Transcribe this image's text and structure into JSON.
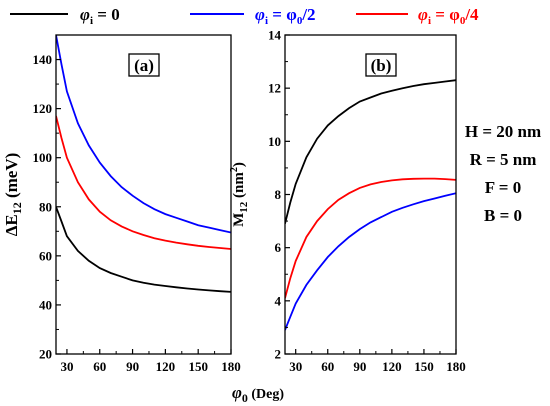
{
  "legend": [
    {
      "symbol": "φ",
      "sub": "i",
      "rest": " = 0",
      "color": "#000000"
    },
    {
      "symbol": "φ",
      "sub": "i",
      "rest": " = φ",
      "sub2": "0",
      "tail": "/2",
      "color": "#0000ff"
    },
    {
      "symbol": "φ",
      "sub": "i",
      "rest": " = φ",
      "sub2": "0",
      "tail": "/4",
      "color": "#ff0000"
    }
  ],
  "params": [
    "H = 20 nm",
    "R = 5 nm",
    "F = 0",
    "B = 0"
  ],
  "chart_data": [
    {
      "type": "line",
      "panel_label": "(a)",
      "ylabel": {
        "main": "ΔE",
        "sub": "12",
        "unit": " (meV)"
      },
      "xlim": [
        20,
        180
      ],
      "ylim": [
        20,
        150
      ],
      "xticks": [
        30,
        60,
        90,
        120,
        150,
        180
      ],
      "yticks": [
        20,
        40,
        60,
        80,
        100,
        120,
        140
      ],
      "x": [
        20,
        25,
        30,
        40,
        50,
        60,
        70,
        80,
        90,
        100,
        110,
        120,
        130,
        140,
        150,
        160,
        170,
        180
      ],
      "series": [
        {
          "color": "#000000",
          "values": [
            80,
            74,
            68,
            62,
            58,
            55,
            53,
            51.5,
            50,
            49,
            48.3,
            47.7,
            47.2,
            46.7,
            46.3,
            45.9,
            45.6,
            45.3
          ]
        },
        {
          "color": "#0000ff",
          "values": [
            150,
            138,
            127,
            114,
            105,
            98,
            92.5,
            88,
            84.5,
            81.5,
            79,
            77,
            75.5,
            74,
            72.5,
            71.5,
            70.5,
            69.5
          ]
        },
        {
          "color": "#ff0000",
          "values": [
            117,
            108,
            100,
            90,
            83,
            78,
            74.5,
            72,
            70,
            68.5,
            67.2,
            66.2,
            65.4,
            64.7,
            64.1,
            63.6,
            63.2,
            62.8
          ]
        }
      ]
    },
    {
      "type": "line",
      "panel_label": "(b)",
      "ylabel": {
        "main": "M",
        "sub": "12",
        "unit": " (nm",
        "sup": "2",
        "close": ")"
      },
      "xlim": [
        20,
        180
      ],
      "ylim": [
        2,
        14
      ],
      "xticks": [
        30,
        60,
        90,
        120,
        150,
        180
      ],
      "yticks": [
        2,
        4,
        6,
        8,
        10,
        12,
        14
      ],
      "x": [
        20,
        25,
        30,
        40,
        50,
        60,
        70,
        80,
        90,
        100,
        110,
        120,
        130,
        140,
        150,
        160,
        170,
        180
      ],
      "series": [
        {
          "color": "#000000",
          "values": [
            6.9,
            7.7,
            8.4,
            9.4,
            10.1,
            10.6,
            10.95,
            11.25,
            11.5,
            11.65,
            11.8,
            11.9,
            12.0,
            12.08,
            12.15,
            12.2,
            12.25,
            12.3
          ]
        },
        {
          "color": "#0000ff",
          "values": [
            2.9,
            3.4,
            3.9,
            4.6,
            5.15,
            5.65,
            6.05,
            6.4,
            6.7,
            6.95,
            7.15,
            7.35,
            7.5,
            7.63,
            7.75,
            7.85,
            7.95,
            8.05
          ]
        },
        {
          "color": "#ff0000",
          "values": [
            4.1,
            4.85,
            5.5,
            6.4,
            7.0,
            7.45,
            7.8,
            8.05,
            8.25,
            8.38,
            8.47,
            8.53,
            8.57,
            8.59,
            8.6,
            8.6,
            8.58,
            8.55
          ]
        }
      ]
    }
  ],
  "xlabel": {
    "main": "φ",
    "sub": "0",
    "unit": " (Deg)"
  }
}
